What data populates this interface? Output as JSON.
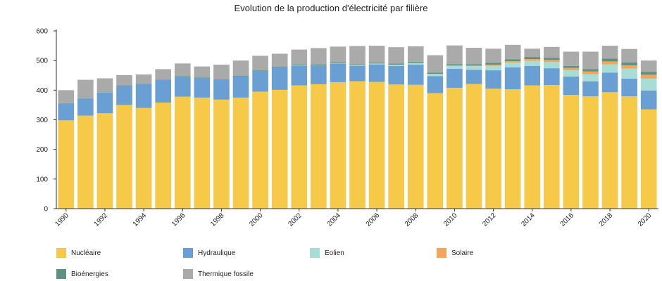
{
  "chart_data": {
    "type": "bar",
    "stacked": true,
    "title": "Evolution de la production d'électricité par filière",
    "xlabel": "",
    "ylabel": "",
    "ylim": [
      0,
      600
    ],
    "yticks": [
      0,
      100,
      200,
      300,
      400,
      500,
      600
    ],
    "grid": false,
    "legend_position": "bottom",
    "categories": [
      "1990",
      "1991",
      "1992",
      "1993",
      "1994",
      "1995",
      "1996",
      "1997",
      "1998",
      "1999",
      "2000",
      "2001",
      "2002",
      "2003",
      "2004",
      "2005",
      "2006",
      "2007",
      "2008",
      "2009",
      "2010",
      "2011",
      "2012",
      "2013",
      "2014",
      "2015",
      "2016",
      "2017",
      "2018",
      "2019",
      "2020"
    ],
    "x_tick_labels": [
      "1990",
      "1992",
      "1994",
      "1996",
      "1998",
      "2000",
      "2002",
      "2004",
      "2006",
      "2008",
      "2010",
      "2012",
      "2014",
      "2016",
      "2018",
      "2020"
    ],
    "series": [
      {
        "name": "Nucléaire",
        "color": "#f7c948",
        "values": [
          298,
          314,
          322,
          350,
          340,
          358,
          378,
          375,
          368,
          375,
          395,
          401,
          416,
          420,
          427,
          430,
          428,
          419,
          418,
          390,
          408,
          421,
          405,
          403,
          416,
          417,
          384,
          379,
          393,
          379,
          335
        ]
      },
      {
        "name": "Hydraulique",
        "color": "#6a9fd4",
        "values": [
          57,
          58,
          70,
          65,
          80,
          76,
          68,
          66,
          66,
          72,
          70,
          76,
          66,
          64,
          63,
          52,
          59,
          63,
          68,
          57,
          64,
          48,
          62,
          74,
          66,
          57,
          62,
          51,
          66,
          60,
          64
        ]
      },
      {
        "name": "Eolien",
        "color": "#a8ddd6",
        "values": [
          0,
          0,
          0,
          0,
          0,
          0,
          0,
          0,
          0,
          0,
          0,
          0,
          1,
          1,
          1,
          2,
          3,
          4,
          6,
          8,
          10,
          12,
          15,
          16,
          17,
          21,
          21,
          24,
          28,
          34,
          40
        ]
      },
      {
        "name": "Solaire",
        "color": "#f5a45c",
        "values": [
          0,
          0,
          0,
          0,
          0,
          0,
          0,
          0,
          0,
          0,
          0,
          0,
          0,
          0,
          0,
          0,
          0,
          0,
          0,
          0,
          1,
          2,
          4,
          5,
          6,
          7,
          8,
          9,
          10,
          11,
          13
        ]
      },
      {
        "name": "Bioénergies",
        "color": "#5f9182",
        "values": [
          1,
          1,
          1,
          1,
          1,
          1,
          1,
          2,
          2,
          2,
          2,
          2,
          3,
          3,
          3,
          3,
          3,
          4,
          4,
          4,
          5,
          5,
          6,
          6,
          7,
          7,
          7,
          8,
          10,
          10,
          10
        ]
      },
      {
        "name": "Thermique fossile",
        "color": "#aaaaaa",
        "values": [
          44,
          62,
          47,
          35,
          32,
          36,
          43,
          37,
          50,
          51,
          49,
          44,
          51,
          54,
          53,
          62,
          57,
          55,
          52,
          59,
          63,
          55,
          48,
          49,
          28,
          37,
          48,
          59,
          43,
          45,
          38
        ]
      }
    ]
  }
}
